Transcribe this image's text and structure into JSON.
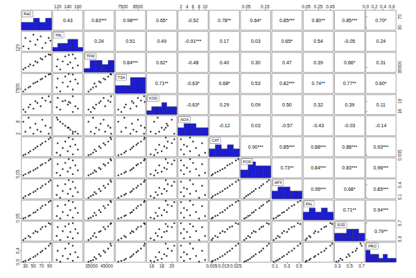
{
  "chart_data": {
    "type": "scatter_matrix",
    "color": "#1c1cd2",
    "hist_ylim": [
      0,
      5
    ],
    "variables": [
      {
        "name": "RaC",
        "xlim": [
          20,
          95
        ],
        "ylim": [
          20,
          95
        ],
        "xticks": [
          30,
          50,
          70,
          90
        ],
        "yticks": [
          30,
          70
        ],
        "values": [
          25,
          30,
          38,
          42,
          50,
          55,
          60,
          68,
          72,
          80,
          88,
          92
        ],
        "bins": [
          20,
          35,
          50,
          65,
          80,
          95
        ],
        "counts": [
          2,
          2,
          3,
          2,
          3
        ]
      },
      {
        "name": "TRL",
        "xlim": [
          110,
          170
        ],
        "ylim": [
          110,
          170
        ],
        "xticks": [
          120,
          140,
          160
        ],
        "yticks": [
          120
        ],
        "values": [
          125,
          150,
          118,
          140,
          160,
          130,
          145,
          155,
          120,
          135,
          150,
          142
        ],
        "bins": [
          110,
          120,
          130,
          140,
          150,
          160,
          170
        ],
        "counts": [
          1,
          2,
          2,
          3,
          3,
          1
        ]
      },
      {
        "name": "TFW",
        "xlim": [
          30000,
          50000
        ],
        "ylim": [
          30000,
          50000
        ],
        "xticks": [
          35000,
          45000
        ],
        "yticks": [
          35000
        ],
        "values": [
          33000,
          34500,
          36000,
          38000,
          37000,
          41000,
          40000,
          44000,
          43000,
          46000,
          48000,
          47500
        ],
        "bins": [
          30000,
          34000,
          38000,
          42000,
          46000,
          50000
        ],
        "counts": [
          1,
          3,
          3,
          2,
          3
        ]
      },
      {
        "name": "TSA",
        "xlim": [
          7000,
          9000
        ],
        "ylim": [
          7000,
          9000
        ],
        "xticks": [
          7500,
          8500
        ],
        "yticks": [
          7500
        ],
        "values": [
          7200,
          7400,
          7600,
          7700,
          8000,
          8100,
          8200,
          8400,
          8500,
          8700,
          8900,
          8950
        ],
        "bins": [
          7000,
          7500,
          8000,
          8500,
          9000
        ],
        "counts": [
          2,
          2,
          4,
          4
        ]
      },
      {
        "name": "KGD",
        "xlim": [
          15,
          21
        ],
        "ylim": [
          15,
          21
        ],
        "xticks": [
          16,
          18,
          20
        ],
        "yticks": [
          16,
          19
        ],
        "values": [
          16.5,
          15.8,
          17.2,
          18.0,
          16.8,
          19.0,
          18.5,
          17.5,
          20.0,
          19.2,
          20.5,
          18.8
        ],
        "bins": [
          15,
          16,
          17,
          18,
          19,
          20,
          21
        ],
        "counts": [
          1,
          2,
          2,
          3,
          2,
          2
        ]
      },
      {
        "name": "NOA",
        "xlim": [
          1,
          11
        ],
        "ylim": [
          1,
          11
        ],
        "xticks": [
          2,
          4,
          6,
          8,
          10
        ],
        "yticks": [
          2,
          8
        ],
        "values": [
          8,
          3,
          10,
          5,
          2,
          7,
          4,
          3,
          9,
          6,
          2,
          5
        ],
        "bins": [
          1,
          3,
          5,
          7,
          9,
          11
        ],
        "counts": [
          2,
          3,
          3,
          2,
          2
        ]
      },
      {
        "name": "CAT",
        "xlim": [
          0.003,
          0.028
        ],
        "ylim": [
          0.003,
          0.028
        ],
        "xticks": [
          0.005,
          0.015,
          0.025
        ],
        "yticks": [
          0.005
        ],
        "values": [
          0.005,
          0.006,
          0.008,
          0.01,
          0.012,
          0.014,
          0.016,
          0.018,
          0.02,
          0.022,
          0.025,
          0.027
        ],
        "bins": [
          0.003,
          0.008,
          0.013,
          0.018,
          0.023,
          0.028
        ],
        "counts": [
          2,
          3,
          2,
          3,
          2
        ]
      },
      {
        "name": "POD",
        "xlim": [
          0.02,
          0.18
        ],
        "ylim": [
          0.02,
          0.18
        ],
        "xticks": [
          0.05,
          0.15
        ],
        "yticks": [
          0.05
        ],
        "values": [
          0.04,
          0.05,
          0.06,
          0.07,
          0.08,
          0.09,
          0.1,
          0.12,
          0.13,
          0.14,
          0.16,
          0.17
        ],
        "bins": [
          0.02,
          0.06,
          0.1,
          0.14,
          0.18
        ],
        "counts": [
          2,
          4,
          3,
          3
        ]
      },
      {
        "name": "APX",
        "xlim": [
          0.05,
          0.55
        ],
        "ylim": [
          0.05,
          0.55
        ],
        "xticks": [
          0.1,
          0.3,
          0.5
        ],
        "yticks": [
          0.1,
          0.4
        ],
        "values": [
          0.08,
          0.12,
          0.15,
          0.18,
          0.22,
          0.25,
          0.3,
          0.33,
          0.38,
          0.42,
          0.48,
          0.52
        ],
        "bins": [
          0.05,
          0.15,
          0.25,
          0.35,
          0.45,
          0.55
        ],
        "counts": [
          2,
          3,
          3,
          2,
          2
        ]
      },
      {
        "name": "PAL",
        "xlim": [
          0,
          0.5
        ],
        "ylim": [
          0,
          0.5
        ],
        "xticks": [
          0.05,
          0.25,
          0.45
        ],
        "yticks": [
          0.05
        ],
        "values": [
          0.04,
          0.06,
          0.1,
          0.12,
          0.18,
          0.2,
          0.25,
          0.3,
          0.35,
          0.38,
          0.45,
          0.48
        ],
        "bins": [
          0,
          0.1,
          0.2,
          0.3,
          0.4,
          0.5
        ],
        "counts": [
          2,
          3,
          2,
          3,
          2
        ]
      },
      {
        "name": "SOD",
        "xlim": [
          0.25,
          0.75
        ],
        "ylim": [
          0.25,
          0.75
        ],
        "xticks": [
          0.3,
          0.5,
          0.7
        ],
        "yticks": [
          0.3,
          0.7
        ],
        "values": [
          0.28,
          0.32,
          0.38,
          0.35,
          0.45,
          0.5,
          0.48,
          0.55,
          0.6,
          0.62,
          0.7,
          0.68
        ],
        "bins": [
          0.25,
          0.35,
          0.45,
          0.55,
          0.65,
          0.75
        ],
        "counts": [
          2,
          2,
          3,
          3,
          2
        ]
      },
      {
        "name": "PRO",
        "xlim": [
          0,
          0.7
        ],
        "ylim": [
          0,
          0.7
        ],
        "xticks": [
          {
            "value": 0,
            "label": "0.0"
          },
          0.2,
          0.4,
          0.6
        ],
        "yticks": [
          {
            "value": 0,
            "label": "0.0"
          },
          0.4
        ],
        "values": [
          0.02,
          0.05,
          0.08,
          0.12,
          0.18,
          0.22,
          0.28,
          0.35,
          0.4,
          0.48,
          0.58,
          0.65
        ],
        "bins": [
          0,
          0.1,
          0.2,
          0.3,
          0.4,
          0.5,
          0.6,
          0.7
        ],
        "counts": [
          3,
          2,
          2,
          1,
          2,
          1,
          1
        ]
      }
    ],
    "correlations": [
      [
        {
          "value": 0.43,
          "label": "0.43"
        },
        {
          "value": 0.83,
          "label": "0.83***"
        },
        {
          "value": 0.98,
          "label": "0.98***"
        },
        {
          "value": 0.65,
          "label": "0.65*"
        },
        {
          "value": -0.52,
          "label": "-0.52"
        },
        {
          "value": 0.78,
          "label": "0.78**"
        },
        {
          "value": 0.64,
          "label": "0.64*"
        },
        {
          "value": 0.85,
          "label": "0.85***"
        },
        {
          "value": 0.8,
          "label": "0.80**"
        },
        {
          "value": 0.85,
          "label": "0.85***"
        },
        {
          "value": 0.7,
          "label": "0.70*"
        }
      ],
      [
        {
          "value": 0.24,
          "label": "0.24"
        },
        {
          "value": 0.51,
          "label": "0.51"
        },
        {
          "value": 0.49,
          "label": "0.49"
        },
        {
          "value": -0.91,
          "label": "-0.91***"
        },
        {
          "value": 0.17,
          "label": "0.17"
        },
        {
          "value": 0.03,
          "label": "0.03"
        },
        {
          "value": 0.65,
          "label": "0.65*"
        },
        {
          "value": 0.54,
          "label": "0.54"
        },
        {
          "value": -0.05,
          "label": "-0.05"
        },
        {
          "value": 0.24,
          "label": "0.24"
        }
      ],
      [
        {
          "value": 0.84,
          "label": "0.84***"
        },
        {
          "value": 0.62,
          "label": "0.62*"
        },
        {
          "value": -0.48,
          "label": "-0.48"
        },
        {
          "value": 0.4,
          "label": "0.40"
        },
        {
          "value": 0.3,
          "label": "0.30"
        },
        {
          "value": 0.47,
          "label": "0.47"
        },
        {
          "value": 0.39,
          "label": "0.39"
        },
        {
          "value": 0.66,
          "label": "0.66*"
        },
        {
          "value": 0.31,
          "label": "0.31"
        }
      ],
      [
        {
          "value": 0.71,
          "label": "0.71**"
        },
        {
          "value": -0.63,
          "label": "-0.63*"
        },
        {
          "value": 0.68,
          "label": "0.68*"
        },
        {
          "value": 0.53,
          "label": "0.53"
        },
        {
          "value": 0.82,
          "label": "0.82***"
        },
        {
          "value": 0.74,
          "label": "0.74**"
        },
        {
          "value": 0.77,
          "label": "0.77**"
        },
        {
          "value": 0.6,
          "label": "0.60*"
        }
      ],
      [
        {
          "value": -0.63,
          "label": "-0.63*"
        },
        {
          "value": 0.29,
          "label": "0.29"
        },
        {
          "value": 0.09,
          "label": "0.09"
        },
        {
          "value": 0.5,
          "label": "0.50"
        },
        {
          "value": 0.32,
          "label": "0.32"
        },
        {
          "value": 0.39,
          "label": "0.39"
        },
        {
          "value": 0.11,
          "label": "0.11"
        }
      ],
      [
        {
          "value": -0.12,
          "label": "-0.12"
        },
        {
          "value": 0.03,
          "label": "0.03"
        },
        {
          "value": -0.57,
          "label": "-0.57"
        },
        {
          "value": -0.43,
          "label": "-0.43"
        },
        {
          "value": -0.03,
          "label": "-0.03"
        },
        {
          "value": -0.14,
          "label": "-0.14"
        }
      ],
      [
        {
          "value": 0.9,
          "label": "0.90***"
        },
        {
          "value": 0.85,
          "label": "0.85***"
        },
        {
          "value": 0.88,
          "label": "0.88***"
        },
        {
          "value": 0.88,
          "label": "0.88***"
        },
        {
          "value": 0.93,
          "label": "0.93***"
        }
      ],
      [
        {
          "value": 0.73,
          "label": "0.73**"
        },
        {
          "value": 0.84,
          "label": "0.84***"
        },
        {
          "value": 0.83,
          "label": "0.83***"
        },
        {
          "value": 0.96,
          "label": "0.96***"
        }
      ],
      [
        {
          "value": 0.95,
          "label": "0.95***"
        },
        {
          "value": 0.68,
          "label": "0.68*"
        },
        {
          "value": 0.85,
          "label": "0.85***"
        }
      ],
      [
        {
          "value": 0.71,
          "label": "0.71**"
        },
        {
          "value": 0.94,
          "label": "0.94***"
        }
      ],
      [
        {
          "value": 0.79,
          "label": "0.79**"
        }
      ]
    ]
  }
}
